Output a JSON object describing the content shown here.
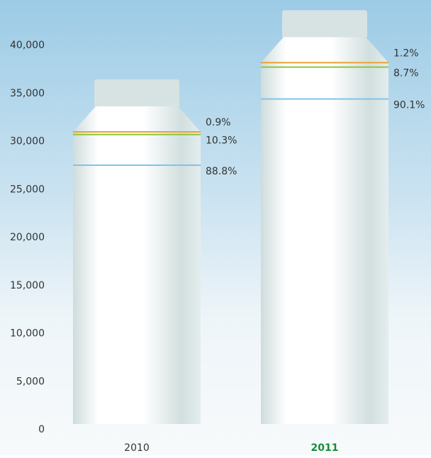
{
  "chart_data": {
    "type": "bottle-stack",
    "categories": [
      "2010",
      "2011"
    ],
    "category_colors": [
      "#333333",
      "#1a8a3a"
    ],
    "series": [
      {
        "color": "#7fc4ea",
        "values": [
          27528,
          34418
        ],
        "share_labels": [
          "88.8%",
          "90.1%"
        ]
      },
      {
        "color": "#8cc63f",
        "values": [
          3193,
          3323
        ],
        "share_labels": [
          "10.3%",
          "8.7%"
        ]
      },
      {
        "color": "#f0a030",
        "values": [
          279,
          458
        ],
        "share_labels": [
          "0.9%",
          "1.2%"
        ]
      }
    ],
    "ylim": [
      0,
      40000
    ],
    "yticks": [
      {
        "value": 0,
        "label": "0"
      },
      {
        "value": 5000,
        "label": "5,000"
      },
      {
        "value": 10000,
        "label": "10,000"
      },
      {
        "value": 15000,
        "label": "15,000"
      },
      {
        "value": 20000,
        "label": "20,000"
      },
      {
        "value": 25000,
        "label": "25,000"
      },
      {
        "value": 30000,
        "label": "30,000"
      },
      {
        "value": 35000,
        "label": "35,000"
      },
      {
        "value": 40000,
        "label": "40,000"
      }
    ]
  }
}
